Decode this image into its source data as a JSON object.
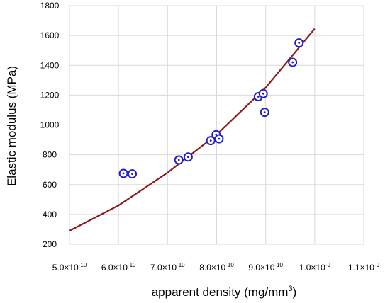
{
  "chart_data": {
    "type": "scatter",
    "xlabel": "apparent density (mg/mm",
    "xlabel_superscript": "3",
    "xlabel_suffix": ")",
    "ylabel": "Elastic modulus (MPa)",
    "xlim": [
      5e-10,
      1.1e-09
    ],
    "ylim": [
      200,
      1800
    ],
    "x_ticks": [
      {
        "value": 5e-10,
        "mantissa": "5.0×10",
        "exp": "-10"
      },
      {
        "value": 6e-10,
        "mantissa": "6.0×10",
        "exp": "-10"
      },
      {
        "value": 7e-10,
        "mantissa": "7.0×10",
        "exp": "-10"
      },
      {
        "value": 8e-10,
        "mantissa": "8.0×10",
        "exp": "-10"
      },
      {
        "value": 9e-10,
        "mantissa": "9.0×10",
        "exp": "-10"
      },
      {
        "value": 1e-09,
        "mantissa": "1.0×10",
        "exp": "-9"
      },
      {
        "value": 1.1e-09,
        "mantissa": "1.1×10",
        "exp": "-9"
      }
    ],
    "y_ticks": [
      200,
      400,
      600,
      800,
      1000,
      1200,
      1400,
      1600,
      1800
    ],
    "grid": true,
    "series": [
      {
        "kind": "points",
        "color": "#1f1fd1",
        "points": [
          {
            "x": 6.1e-10,
            "y": 675
          },
          {
            "x": 6.28e-10,
            "y": 672
          },
          {
            "x": 7.23e-10,
            "y": 765
          },
          {
            "x": 7.42e-10,
            "y": 785
          },
          {
            "x": 7.88e-10,
            "y": 895
          },
          {
            "x": 7.99e-10,
            "y": 935
          },
          {
            "x": 8.05e-10,
            "y": 907
          },
          {
            "x": 8.85e-10,
            "y": 1190
          },
          {
            "x": 8.95e-10,
            "y": 1210
          },
          {
            "x": 8.98e-10,
            "y": 1085
          },
          {
            "x": 9.55e-10,
            "y": 1420
          },
          {
            "x": 9.68e-10,
            "y": 1550
          }
        ]
      },
      {
        "kind": "line",
        "color": "#8b1a1a",
        "points": [
          {
            "x": 5e-10,
            "y": 290
          },
          {
            "x": 6e-10,
            "y": 460
          },
          {
            "x": 7e-10,
            "y": 680
          },
          {
            "x": 8e-10,
            "y": 935
          },
          {
            "x": 9e-10,
            "y": 1250
          },
          {
            "x": 1e-09,
            "y": 1645
          }
        ]
      }
    ]
  }
}
